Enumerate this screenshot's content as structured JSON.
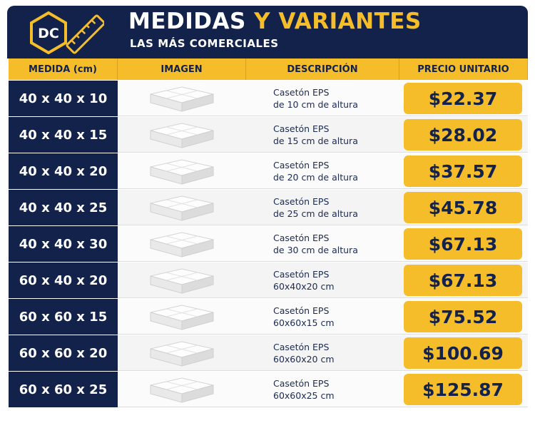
{
  "header": {
    "logo": "DC",
    "title_main": "MEDIDAS",
    "title_accent": "Y VARIANTES",
    "subtitle": "LAS MÁS COMERCIALES"
  },
  "table": {
    "columns": [
      "MEDIDA (cm)",
      "IMAGEN",
      "DESCRIPCIÓN",
      "PRECIO UNITARIO"
    ],
    "rows": [
      {
        "medida": "40 x 40 x 10",
        "descripcion": [
          "Casetón EPS",
          "de 10 cm de altura"
        ],
        "precio": "$22.37"
      },
      {
        "medida": "40 x 40 x 15",
        "descripcion": [
          "Casetón EPS",
          "de 15 cm de altura"
        ],
        "precio": "$28.02"
      },
      {
        "medida": "40 x 40 x 20",
        "descripcion": [
          "Casetón EPS",
          "de 20 cm de altura"
        ],
        "precio": "$37.57"
      },
      {
        "medida": "40 x 40 x 25",
        "descripcion": [
          "Casetón EPS",
          "de 25 cm de altura"
        ],
        "precio": "$45.78"
      },
      {
        "medida": "40 x 40 x 30",
        "descripcion": [
          "Casetón EPS",
          "de 30 cm de altura"
        ],
        "precio": "$67.13"
      },
      {
        "medida": "60 x 40 x 20",
        "descripcion": [
          "Casetón EPS",
          "60x40x20 cm"
        ],
        "precio": "$67.13"
      },
      {
        "medida": "60 x 60 x 15",
        "descripcion": [
          "Casetón EPS",
          "60x60x15 cm"
        ],
        "precio": "$75.52"
      },
      {
        "medida": "60 x 60 x 20",
        "descripcion": [
          "Casetón EPS",
          "60x60x20 cm"
        ],
        "precio": "$100.69"
      },
      {
        "medida": "60 x 60 x 25",
        "descripcion": [
          "Casetón EPS",
          "60x60x25 cm"
        ],
        "precio": "$125.87"
      }
    ]
  }
}
